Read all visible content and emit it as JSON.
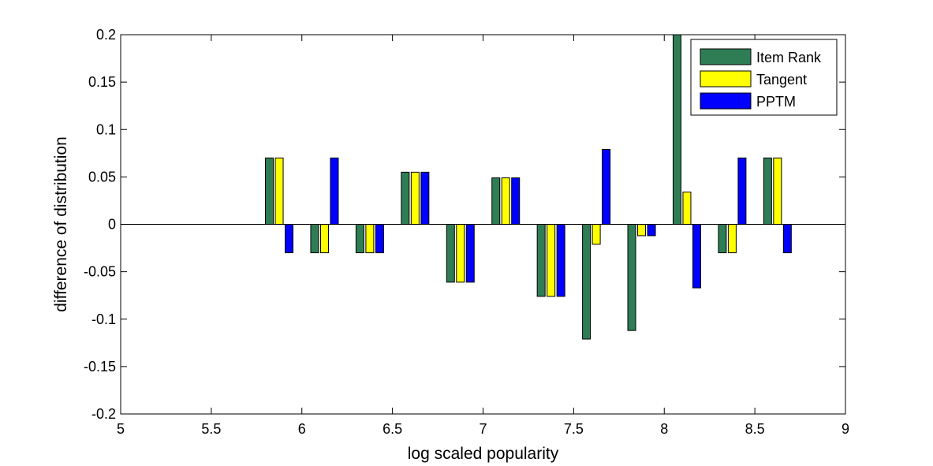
{
  "chart_data": {
    "type": "bar",
    "xlabel": "log scaled popularity",
    "ylabel": "difference of distribution",
    "xlim": [
      5,
      9
    ],
    "ylim": [
      -0.2,
      0.2
    ],
    "xticks": [
      5,
      5.5,
      6,
      6.5,
      7,
      7.5,
      8,
      8.5,
      9
    ],
    "xtick_labels": [
      "5",
      "5.5",
      "6",
      "6.5",
      "7",
      "7.5",
      "8",
      "8.5",
      "9"
    ],
    "yticks": [
      -0.2,
      -0.15,
      -0.1,
      -0.05,
      0,
      0.05,
      0.1,
      0.15,
      0.2
    ],
    "ytick_labels": [
      "-0.2",
      "-0.15",
      "-0.1",
      "-0.05",
      "0",
      "0.05",
      "0.1",
      "0.15",
      "0.2"
    ],
    "grid": false,
    "legend_position": "top-right",
    "group_centers": [
      5.875,
      6.125,
      6.375,
      6.625,
      6.875,
      7.125,
      7.375,
      7.625,
      7.875,
      8.125,
      8.375,
      8.625
    ],
    "series": [
      {
        "name": "Item Rank",
        "color": "#2e7d55",
        "values": [
          0.07,
          -0.03,
          -0.03,
          0.055,
          -0.061,
          0.049,
          -0.076,
          -0.121,
          -0.112,
          0.2,
          -0.03,
          0.07
        ]
      },
      {
        "name": "Tangent",
        "color": "#ffff00",
        "values": [
          0.07,
          -0.03,
          -0.03,
          0.055,
          -0.061,
          0.049,
          -0.076,
          -0.021,
          -0.012,
          0.034,
          -0.03,
          0.07
        ]
      },
      {
        "name": "PPTM",
        "color": "#0000ff",
        "values": [
          -0.03,
          0.07,
          -0.03,
          0.055,
          -0.061,
          0.049,
          -0.076,
          0.079,
          -0.012,
          -0.067,
          0.07,
          -0.03
        ]
      }
    ]
  }
}
